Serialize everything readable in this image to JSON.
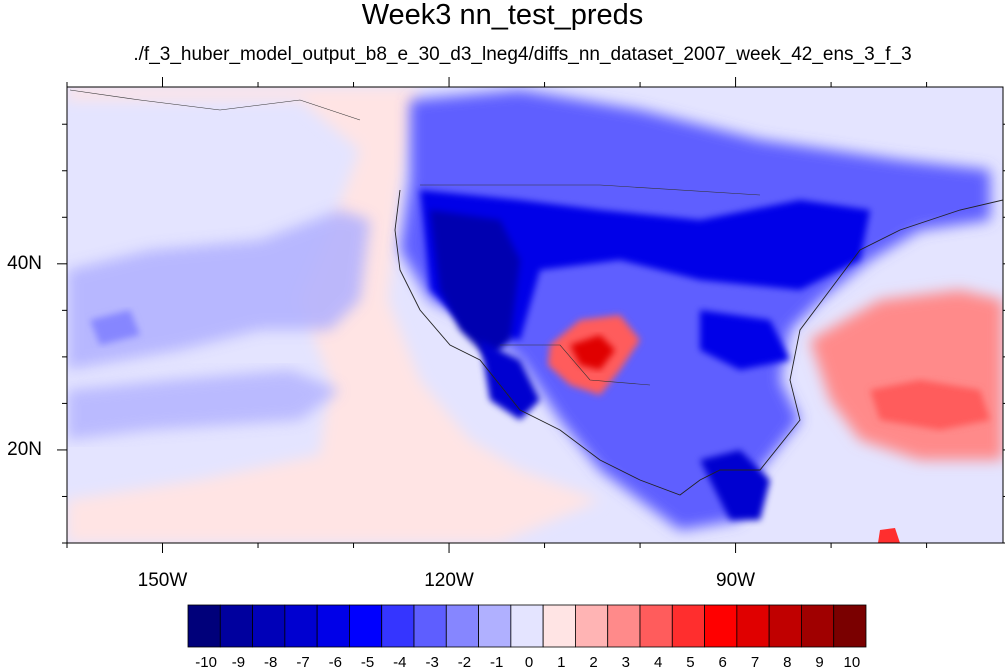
{
  "title": "Week3 nn_test_preds",
  "subtitle": "./f_3_huber_model_output_b8_e_30_d3_lneg4/diffs_nn_dataset_2007_week_42_ens_3_f_3",
  "map": {
    "lon_range": [
      -160,
      -62
    ],
    "lat_range": [
      10,
      59
    ],
    "lon_labels": [
      {
        "lon": -150,
        "text": "150W"
      },
      {
        "lon": -120,
        "text": "120W"
      },
      {
        "lon": -90,
        "text": "90W"
      }
    ],
    "lat_labels": [
      {
        "lat": 40,
        "text": "40N"
      },
      {
        "lat": 20,
        "text": "20N"
      }
    ]
  },
  "colorbar": {
    "labels": [
      "-10",
      "-9",
      "-8",
      "-7",
      "-6",
      "-5",
      "-4",
      "-3",
      "-2",
      "-1",
      "0",
      "1",
      "2",
      "3",
      "4",
      "5",
      "6",
      "7",
      "8",
      "9",
      "10"
    ],
    "colors": [
      "#00007a",
      "#00009e",
      "#0000b8",
      "#0000d0",
      "#0000e8",
      "#0000ff",
      "#3535ff",
      "#5e5eff",
      "#8686ff",
      "#b0b0ff",
      "#e4e4ff",
      "#ffe4e4",
      "#ffb4b4",
      "#ff8a8a",
      "#ff5c5c",
      "#ff2e2e",
      "#ff0000",
      "#e00000",
      "#c00000",
      "#a00000",
      "#7a0000"
    ]
  }
}
